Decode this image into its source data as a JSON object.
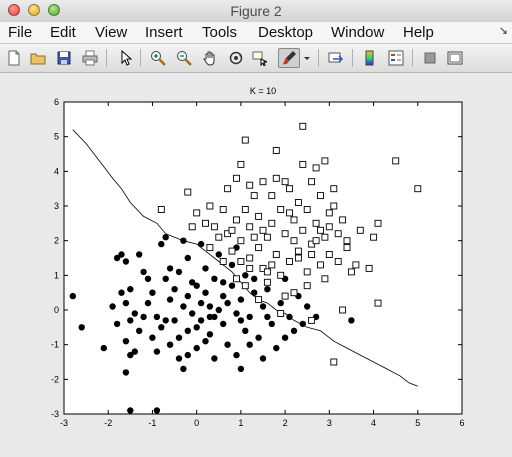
{
  "window": {
    "title": "Figure 2"
  },
  "menu": {
    "items": [
      "File",
      "Edit",
      "View",
      "Insert",
      "Tools",
      "Desktop",
      "Window",
      "Help"
    ],
    "overflow_arrow": "↘"
  },
  "toolbar": {
    "icons": [
      "new-figure-icon",
      "open-file-icon",
      "save-icon",
      "print-icon",
      "pointer-icon",
      "zoom-in-icon",
      "zoom-out-icon",
      "pan-hand-icon",
      "rotate-3d-icon",
      "data-cursor-icon",
      "brush-icon",
      "brush-dropdown-icon",
      "link-plot-icon",
      "colorbar-icon",
      "legend-icon",
      "hide-plot-tools-icon",
      "show-plot-tools-icon"
    ]
  },
  "chart_data": {
    "type": "scatter",
    "title": "K = 10",
    "xlabel": "",
    "ylabel": "",
    "xlim": [
      -3,
      6
    ],
    "ylim": [
      -3,
      6
    ],
    "xticks": [
      -3,
      -2,
      -1,
      0,
      1,
      2,
      3,
      4,
      5,
      6
    ],
    "yticks": [
      -3,
      -2,
      -1,
      0,
      1,
      2,
      3,
      4,
      5,
      6
    ],
    "grid": false,
    "legend": "none",
    "series": [
      {
        "marker": "filled-circle",
        "color": "#000000",
        "points": [
          [
            -2.8,
            0.4
          ],
          [
            -2.6,
            -0.5
          ],
          [
            -1.8,
            1.5
          ],
          [
            -1.7,
            1.6
          ],
          [
            -1.6,
            1.4
          ],
          [
            -1.7,
            0.5
          ],
          [
            -1.5,
            0.6
          ],
          [
            -1.6,
            0.2
          ],
          [
            -1.4,
            -0.1
          ],
          [
            -1.5,
            -0.3
          ],
          [
            -1.6,
            -0.9
          ],
          [
            -1.4,
            -1.2
          ],
          [
            -1.3,
            -0.6
          ],
          [
            -1.5,
            -1.3
          ],
          [
            -1.6,
            -1.8
          ],
          [
            -1.5,
            -2.9
          ],
          [
            -0.9,
            -2.9
          ],
          [
            -1.3,
            1.6
          ],
          [
            -1.2,
            1.1
          ],
          [
            -1.1,
            0.2
          ],
          [
            -1.0,
            0.5
          ],
          [
            -0.9,
            -0.2
          ],
          [
            -0.8,
            -0.5
          ],
          [
            -0.9,
            -1.2
          ],
          [
            -0.7,
            0.9
          ],
          [
            -0.8,
            1.9
          ],
          [
            -0.7,
            2.1
          ],
          [
            -0.6,
            1.2
          ],
          [
            -0.6,
            0.3
          ],
          [
            -0.5,
            0.6
          ],
          [
            -0.5,
            -0.3
          ],
          [
            -0.4,
            -0.8
          ],
          [
            -0.4,
            -1.4
          ],
          [
            -0.3,
            -1.7
          ],
          [
            -0.3,
            0.1
          ],
          [
            -0.2,
            0.4
          ],
          [
            -0.2,
            1.5
          ],
          [
            -0.1,
            0.8
          ],
          [
            -0.1,
            -0.1
          ],
          [
            0.0,
            -0.5
          ],
          [
            0.0,
            -1.1
          ],
          [
            0.1,
            0.2
          ],
          [
            0.1,
            1.9
          ],
          [
            0.2,
            1.2
          ],
          [
            0.2,
            0.5
          ],
          [
            0.3,
            -0.2
          ],
          [
            0.3,
            -0.7
          ],
          [
            0.4,
            -1.4
          ],
          [
            0.4,
            0.9
          ],
          [
            0.5,
            1.6
          ],
          [
            0.5,
            0.0
          ],
          [
            0.6,
            0.4
          ],
          [
            0.6,
            -0.4
          ],
          [
            0.7,
            -1.0
          ],
          [
            0.8,
            0.7
          ],
          [
            0.8,
            1.3
          ],
          [
            0.9,
            -0.1
          ],
          [
            0.9,
            -1.3
          ],
          [
            1.0,
            0.3
          ],
          [
            1.0,
            -1.7
          ],
          [
            1.1,
            -0.6
          ],
          [
            1.1,
            1.0
          ],
          [
            1.2,
            -0.2
          ],
          [
            1.3,
            0.5
          ],
          [
            1.4,
            -0.8
          ],
          [
            1.5,
            0.1
          ],
          [
            1.6,
            0.6
          ],
          [
            1.7,
            -0.4
          ],
          [
            1.8,
            -1.1
          ],
          [
            1.9,
            0.2
          ],
          [
            2.0,
            0.9
          ],
          [
            2.1,
            -0.2
          ],
          [
            2.2,
            -0.6
          ],
          [
            2.3,
            0.4
          ],
          [
            2.5,
            0.1
          ],
          [
            2.7,
            -0.2
          ],
          [
            -1.9,
            0.1
          ],
          [
            -1.2,
            -0.2
          ],
          [
            -1.0,
            -0.8
          ],
          [
            -0.6,
            -1.0
          ],
          [
            -0.2,
            -1.3
          ],
          [
            0.2,
            -0.9
          ],
          [
            0.0,
            0.7
          ],
          [
            -0.4,
            1.1
          ],
          [
            0.3,
            0.1
          ],
          [
            0.6,
            0.8
          ],
          [
            1.2,
            -1.0
          ],
          [
            1.5,
            -1.4
          ],
          [
            -2.1,
            -1.1
          ],
          [
            -1.8,
            -0.4
          ],
          [
            -0.7,
            -0.3
          ],
          [
            0.4,
            -0.2
          ],
          [
            1.0,
            -0.3
          ],
          [
            2.0,
            -0.8
          ],
          [
            3.5,
            -0.3
          ],
          [
            -0.3,
            2.0
          ],
          [
            0.9,
            1.8
          ],
          [
            1.3,
            0.9
          ],
          [
            -1.1,
            0.9
          ],
          [
            -0.2,
            -0.6
          ],
          [
            0.1,
            -0.3
          ],
          [
            0.7,
            0.2
          ],
          [
            1.6,
            -0.2
          ],
          [
            2.4,
            -0.4
          ]
        ]
      },
      {
        "marker": "open-square",
        "color": "#000000",
        "points": [
          [
            -0.8,
            2.9
          ],
          [
            -0.2,
            3.4
          ],
          [
            0.0,
            2.8
          ],
          [
            0.2,
            2.5
          ],
          [
            0.3,
            3.0
          ],
          [
            0.5,
            2.1
          ],
          [
            0.6,
            2.9
          ],
          [
            0.7,
            2.2
          ],
          [
            0.7,
            3.5
          ],
          [
            0.8,
            1.7
          ],
          [
            0.9,
            2.6
          ],
          [
            0.9,
            3.8
          ],
          [
            1.0,
            2.0
          ],
          [
            1.0,
            4.2
          ],
          [
            1.1,
            4.9
          ],
          [
            1.1,
            2.9
          ],
          [
            1.2,
            1.5
          ],
          [
            1.2,
            2.4
          ],
          [
            1.3,
            3.3
          ],
          [
            1.4,
            1.8
          ],
          [
            1.4,
            2.7
          ],
          [
            1.5,
            3.7
          ],
          [
            1.5,
            1.2
          ],
          [
            1.6,
            2.1
          ],
          [
            1.7,
            3.3
          ],
          [
            1.7,
            2.5
          ],
          [
            1.8,
            1.6
          ],
          [
            1.8,
            4.6
          ],
          [
            1.9,
            2.9
          ],
          [
            2.0,
            2.2
          ],
          [
            2.0,
            3.7
          ],
          [
            2.1,
            1.4
          ],
          [
            2.1,
            3.5
          ],
          [
            2.2,
            2.6
          ],
          [
            2.2,
            2.0
          ],
          [
            2.3,
            1.7
          ],
          [
            2.3,
            3.1
          ],
          [
            2.4,
            4.2
          ],
          [
            2.4,
            2.3
          ],
          [
            2.5,
            1.1
          ],
          [
            2.5,
            2.9
          ],
          [
            2.6,
            3.7
          ],
          [
            2.6,
            1.9
          ],
          [
            2.7,
            2.5
          ],
          [
            2.7,
            4.1
          ],
          [
            2.8,
            1.3
          ],
          [
            2.8,
            3.3
          ],
          [
            2.9,
            2.1
          ],
          [
            2.9,
            4.3
          ],
          [
            3.0,
            2.8
          ],
          [
            3.0,
            1.6
          ],
          [
            3.1,
            3.0
          ],
          [
            3.2,
            2.2
          ],
          [
            3.3,
            2.6
          ],
          [
            3.4,
            1.8
          ],
          [
            3.5,
            1.1
          ],
          [
            3.7,
            2.3
          ],
          [
            3.9,
            1.2
          ],
          [
            4.0,
            2.1
          ],
          [
            4.1,
            2.5
          ],
          [
            4.5,
            4.3
          ],
          [
            5.0,
            3.5
          ],
          [
            2.4,
            5.3
          ],
          [
            3.1,
            -1.5
          ],
          [
            4.1,
            0.2
          ],
          [
            3.3,
            0.0
          ],
          [
            2.6,
            -0.3
          ],
          [
            1.9,
            -0.1
          ],
          [
            1.6,
            0.8
          ],
          [
            1.4,
            0.3
          ],
          [
            1.2,
            1.2
          ],
          [
            0.9,
            0.9
          ],
          [
            2.2,
            0.5
          ],
          [
            2.9,
            0.9
          ],
          [
            3.2,
            1.4
          ],
          [
            0.4,
            2.4
          ],
          [
            1.6,
            1.1
          ],
          [
            2.0,
            0.4
          ],
          [
            1.3,
            2.1
          ],
          [
            1.7,
            1.3
          ],
          [
            2.5,
            0.7
          ],
          [
            0.6,
            1.4
          ],
          [
            -0.1,
            2.4
          ],
          [
            3.6,
            1.3
          ],
          [
            2.7,
            2.0
          ],
          [
            1.0,
            1.4
          ],
          [
            1.5,
            2.3
          ],
          [
            2.1,
            2.8
          ],
          [
            0.8,
            2.3
          ],
          [
            2.3,
            1.5
          ],
          [
            3.0,
            2.4
          ],
          [
            1.1,
            0.7
          ],
          [
            1.9,
            1.0
          ],
          [
            2.6,
            1.6
          ],
          [
            3.4,
            2.0
          ],
          [
            0.3,
            1.8
          ],
          [
            1.8,
            3.8
          ],
          [
            2.8,
            2.3
          ],
          [
            1.2,
            3.6
          ],
          [
            3.1,
            3.5
          ]
        ]
      }
    ],
    "boundary": {
      "style": "line",
      "color": "#000000",
      "points": [
        [
          -2.8,
          5.2
        ],
        [
          -2.5,
          4.8
        ],
        [
          -2.2,
          4.3
        ],
        [
          -1.9,
          3.8
        ],
        [
          -1.7,
          3.5
        ],
        [
          -1.5,
          3.1
        ],
        [
          -1.2,
          2.7
        ],
        [
          -0.9,
          2.5
        ],
        [
          -0.7,
          2.2
        ],
        [
          -0.5,
          2.1
        ],
        [
          -0.3,
          2.0
        ],
        [
          0.0,
          1.9
        ],
        [
          0.2,
          1.7
        ],
        [
          0.5,
          1.4
        ],
        [
          0.8,
          1.1
        ],
        [
          1.0,
          0.8
        ],
        [
          1.2,
          0.5
        ],
        [
          1.4,
          0.3
        ],
        [
          1.6,
          0.2
        ],
        [
          1.8,
          0.0
        ],
        [
          2.0,
          -0.1
        ],
        [
          2.2,
          -0.3
        ],
        [
          2.5,
          -0.5
        ],
        [
          2.8,
          -0.6
        ],
        [
          3.1,
          -0.9
        ],
        [
          3.4,
          -1.1
        ],
        [
          3.7,
          -1.3
        ],
        [
          4.0,
          -1.5
        ],
        [
          4.3,
          -1.7
        ],
        [
          4.6,
          -1.9
        ],
        [
          4.8,
          -2.1
        ],
        [
          5.0,
          -2.2
        ]
      ]
    }
  }
}
